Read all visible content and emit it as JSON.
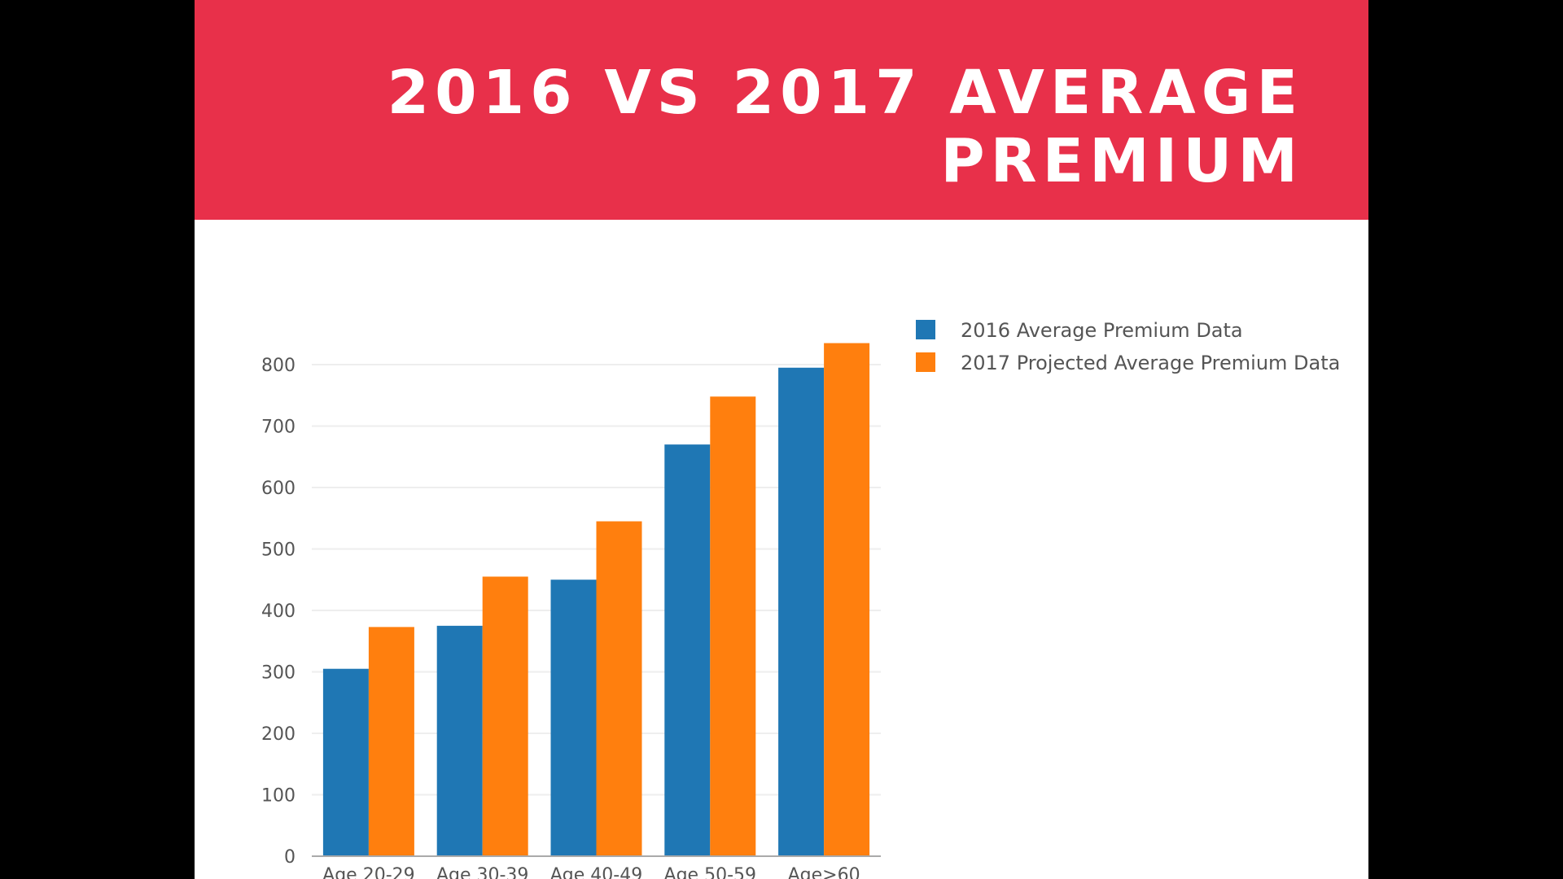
{
  "title": "2016 VS 2017 AVERAGE PREMIUM",
  "colors": {
    "banner": "#e8304a",
    "series_2016": "#1f77b4",
    "series_2017": "#ff7f0e",
    "grid": "#eeeeee",
    "axis": "#aaaaaa"
  },
  "chart_data": {
    "type": "bar",
    "categories": [
      "Age 20-29",
      "Age 30-39",
      "Age 40-49",
      "Age 50-59",
      "Age>60"
    ],
    "series": [
      {
        "name": "2016 Average Premium Data",
        "values": [
          305,
          375,
          450,
          670,
          795
        ]
      },
      {
        "name": "2017 Projected Average Premium Data",
        "values": [
          373,
          455,
          545,
          748,
          835
        ]
      }
    ],
    "ylim": [
      0,
      800
    ],
    "yticks": [
      0,
      100,
      200,
      300,
      400,
      500,
      600,
      700,
      800
    ],
    "grid": true,
    "legend": "top-right",
    "title": "2016 VS 2017 AVERAGE PREMIUM",
    "xlabel": "",
    "ylabel": ""
  }
}
